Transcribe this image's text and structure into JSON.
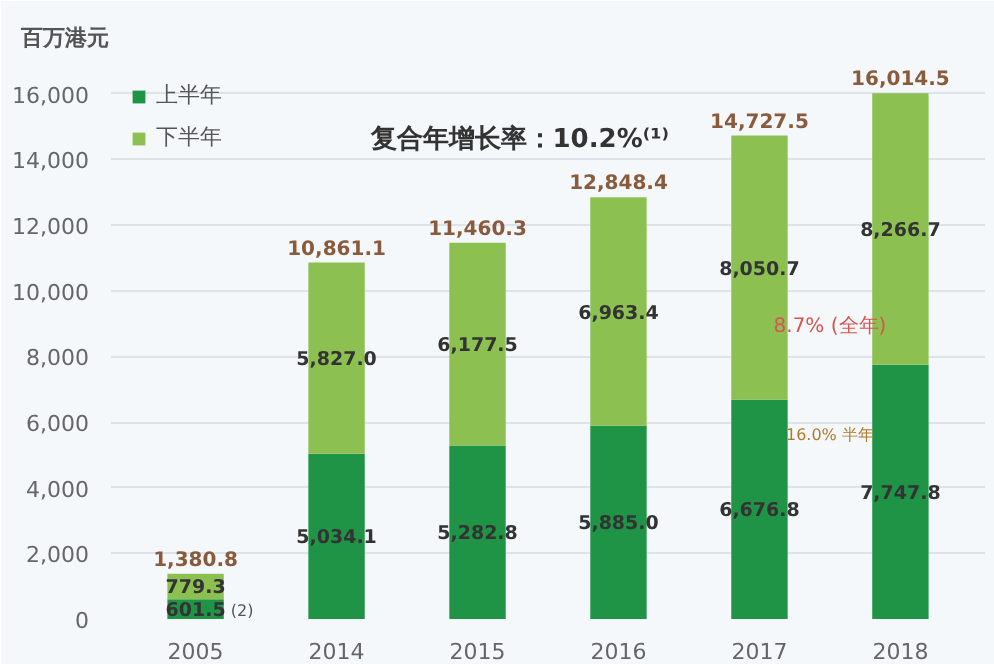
{
  "chart_data": {
    "type": "bar",
    "stacked": true,
    "ylabel": "百万港元",
    "categories": [
      "2005",
      "2014",
      "2015",
      "2016",
      "2017",
      "2018"
    ],
    "series": [
      {
        "name": "上半年",
        "color": "#1f9447",
        "values": [
          601.5,
          5034.1,
          5282.8,
          5885.0,
          6676.8,
          7747.8
        ],
        "value_labels": [
          "601.5",
          "5,034.1",
          "5,282.8",
          "5,885.0",
          "6,676.8",
          "7,747.8"
        ]
      },
      {
        "name": "下半年",
        "color": "#8cc152",
        "values": [
          779.3,
          5827.0,
          6177.5,
          6963.4,
          8050.7,
          8266.7
        ],
        "value_labels": [
          "779.3",
          "5,827.0",
          "6,177.5",
          "6,963.4",
          "8,050.7",
          "8,266.7"
        ]
      }
    ],
    "totals": [
      "1,380.8",
      "10,861.1",
      "11,460.3",
      "12,848.4",
      "14,727.5",
      "16,014.5"
    ],
    "ylim": [
      0,
      17000
    ],
    "yticks": [
      {
        "value": 0,
        "label": "0"
      },
      {
        "value": 2000,
        "label": "2,000"
      },
      {
        "value": 4000,
        "label": "4,000"
      },
      {
        "value": 6000,
        "label": "6,000"
      },
      {
        "value": 8000,
        "label": "8,000"
      },
      {
        "value": 10000,
        "label": "10,000"
      },
      {
        "value": 12000,
        "label": "12,000"
      },
      {
        "value": 14000,
        "label": "14,000"
      },
      {
        "value": 16000,
        "label": "16,000"
      }
    ],
    "grid": "y",
    "legend": "top left",
    "annotations": [
      "复合年增长率：10.2%⁽¹⁾",
      "8.7% (全年)",
      "16.0% 半年",
      "(2)"
    ]
  }
}
